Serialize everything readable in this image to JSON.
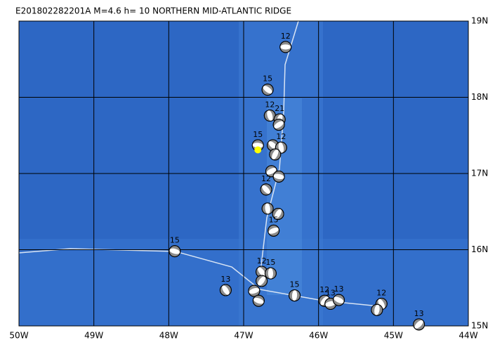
{
  "title": "E201802282201A  M=4.6  h= 10  NORTHERN MID-ATLANTIC RIDGE",
  "xlim": [
    -50,
    -44
  ],
  "ylim": [
    15,
    19
  ],
  "xticks": [
    {
      "value": -50,
      "label": "50W"
    },
    {
      "value": -49,
      "label": "49W"
    },
    {
      "value": -48,
      "label": "48W"
    },
    {
      "value": -47,
      "label": "47W"
    },
    {
      "value": -46,
      "label": "46W"
    },
    {
      "value": -45,
      "label": "45W"
    },
    {
      "value": -44,
      "label": "44W"
    }
  ],
  "yticks": [
    {
      "value": 15,
      "label": "15N"
    },
    {
      "value": 16,
      "label": "16N"
    },
    {
      "value": 17,
      "label": "17N"
    },
    {
      "value": 18,
      "label": "18N"
    },
    {
      "value": 19,
      "label": "19N"
    }
  ],
  "epicenter": {
    "lon": -46.81,
    "lat": 17.31,
    "color": "#ffff00"
  },
  "events": [
    {
      "lon": -46.44,
      "lat": 18.66,
      "depth": 12
    },
    {
      "lon": -46.68,
      "lat": 18.1,
      "depth": 15
    },
    {
      "lon": -46.65,
      "lat": 17.76,
      "depth": 12
    },
    {
      "lon": -46.52,
      "lat": 17.71,
      "depth": 21
    },
    {
      "lon": -46.53,
      "lat": 17.64,
      "depth": null
    },
    {
      "lon": -46.81,
      "lat": 17.37,
      "depth": 15
    },
    {
      "lon": -46.61,
      "lat": 17.37,
      "depth": null
    },
    {
      "lon": -46.5,
      "lat": 17.34,
      "depth": 12
    },
    {
      "lon": -46.58,
      "lat": 17.25,
      "depth": null
    },
    {
      "lon": -46.63,
      "lat": 17.03,
      "depth": null
    },
    {
      "lon": -46.53,
      "lat": 16.96,
      "depth": null
    },
    {
      "lon": -46.7,
      "lat": 16.79,
      "depth": 12
    },
    {
      "lon": -46.68,
      "lat": 16.54,
      "depth": null
    },
    {
      "lon": -46.54,
      "lat": 16.47,
      "depth": null
    },
    {
      "lon": -46.6,
      "lat": 16.25,
      "depth": 15
    },
    {
      "lon": -47.92,
      "lat": 15.98,
      "depth": 15
    },
    {
      "lon": -46.76,
      "lat": 15.71,
      "depth": 12
    },
    {
      "lon": -46.64,
      "lat": 15.69,
      "depth": 15
    },
    {
      "lon": -46.76,
      "lat": 15.59,
      "depth": null
    },
    {
      "lon": -46.86,
      "lat": 15.46,
      "depth": null
    },
    {
      "lon": -46.8,
      "lat": 15.33,
      "depth": null
    },
    {
      "lon": -47.24,
      "lat": 15.47,
      "depth": 13
    },
    {
      "lon": -46.32,
      "lat": 15.4,
      "depth": 15
    },
    {
      "lon": -45.92,
      "lat": 15.33,
      "depth": 12
    },
    {
      "lon": -45.84,
      "lat": 15.29,
      "depth": 13
    },
    {
      "lon": -45.73,
      "lat": 15.34,
      "depth": 13
    },
    {
      "lon": -45.16,
      "lat": 15.29,
      "depth": 12
    },
    {
      "lon": -45.22,
      "lat": 15.21,
      "depth": null
    },
    {
      "lon": -44.66,
      "lat": 15.02,
      "depth": 13
    }
  ]
}
